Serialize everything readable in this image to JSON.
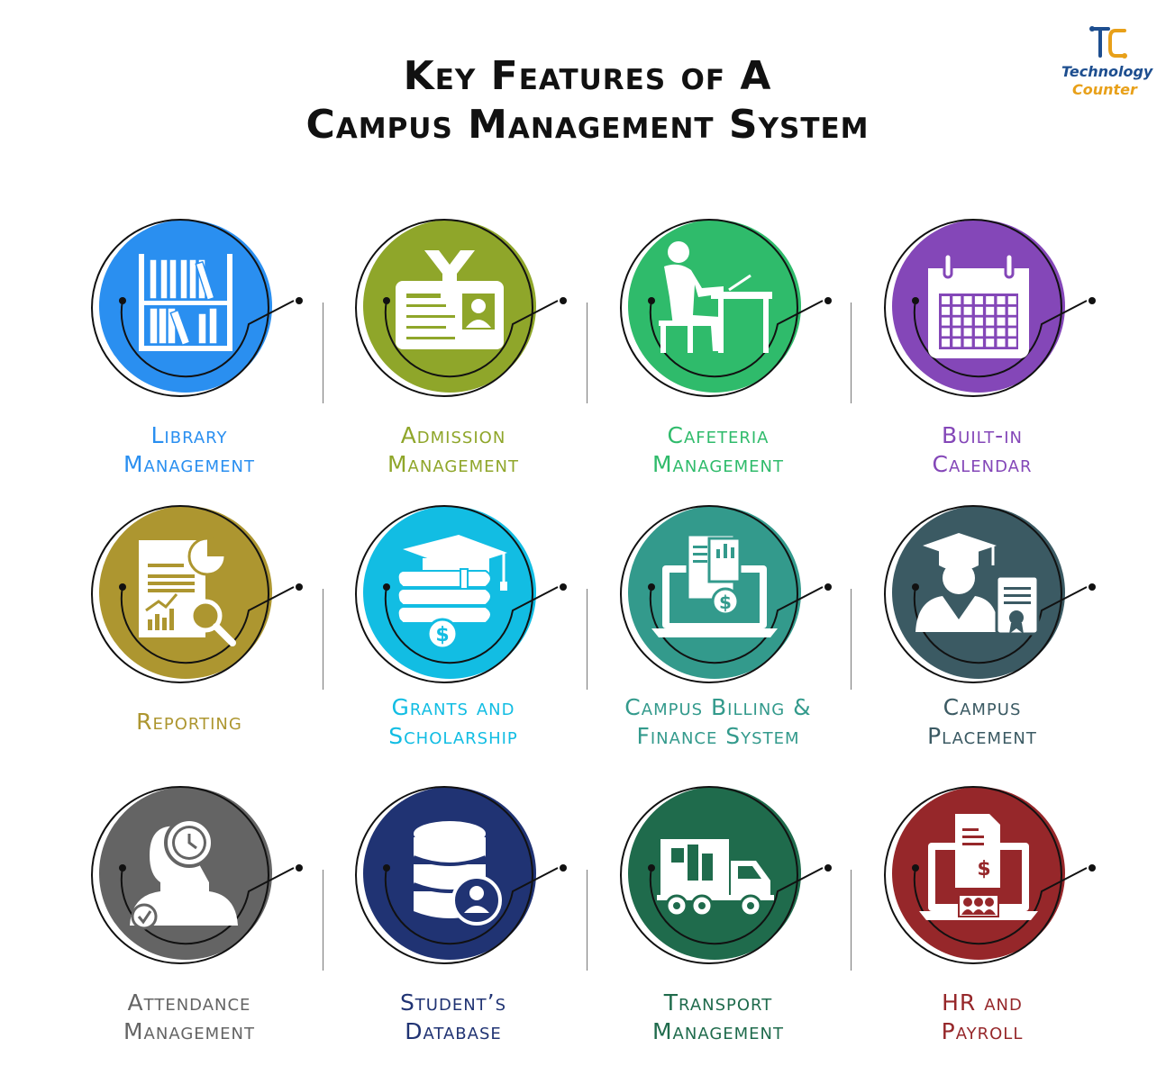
{
  "title": {
    "line1": "Key Features of A",
    "line2": "Campus Management System"
  },
  "logo": {
    "line1": "Technology",
    "line2": "Counter",
    "colors": {
      "primary": "#1d4e8f",
      "accent": "#e8a019"
    }
  },
  "features": [
    {
      "lines": [
        "Library",
        "Management"
      ],
      "color": "#2a8ff0",
      "icon": "bookshelf-icon"
    },
    {
      "lines": [
        "Admission",
        "Management"
      ],
      "color": "#8fa62a",
      "icon": "id-card-icon"
    },
    {
      "lines": [
        "Cafeteria",
        "Management"
      ],
      "color": "#2fbb6b",
      "icon": "person-at-desk-icon"
    },
    {
      "lines": [
        "Built-in",
        "Calendar"
      ],
      "color": "#8447b8",
      "icon": "calendar-icon"
    },
    {
      "lines": [
        "Reporting"
      ],
      "color": "#ad9630",
      "icon": "report-icon"
    },
    {
      "lines": [
        "Grants and",
        "Scholarship"
      ],
      "color": "#12bde3",
      "icon": "graduation-cap-books-icon"
    },
    {
      "lines": [
        "Campus Billing &",
        "Finance System"
      ],
      "color": "#339a8c",
      "icon": "laptop-invoice-icon"
    },
    {
      "lines": [
        "Campus",
        "Placement"
      ],
      "color": "#3b5a63",
      "icon": "graduate-certificate-icon"
    },
    {
      "lines": [
        "Attendance",
        "Management"
      ],
      "color": "#646464",
      "icon": "person-clock-icon"
    },
    {
      "lines": [
        "Student’s",
        "Database"
      ],
      "color": "#203373",
      "icon": "database-user-icon"
    },
    {
      "lines": [
        "Transport",
        "Management"
      ],
      "color": "#1f6b4c",
      "icon": "truck-icon"
    },
    {
      "lines": [
        "HR and",
        "Payroll"
      ],
      "color": "#96272a",
      "icon": "payroll-icon"
    }
  ]
}
